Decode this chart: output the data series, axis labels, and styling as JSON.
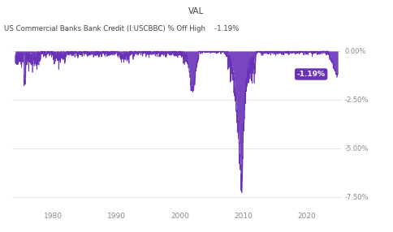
{
  "title_top": "VAL",
  "title_left": "US Commercial Banks Bank Credit (I:USCBBC) % Off High    -1.19%",
  "line_color": "#6932b8",
  "fill_color": "#6932b8",
  "background_color": "#ffffff",
  "grid_color": "#e0e0e0",
  "ylabel_right": [
    "0.00%",
    "-2.50%",
    "-5.00%",
    "-7.50%"
  ],
  "ylim": [
    -8.1,
    0.45
  ],
  "xlim_start": 1973.5,
  "xlim_end": 2025.5,
  "xtick_labels": [
    "1980",
    "1990",
    "2000",
    "2010",
    "2020"
  ],
  "xtick_positions": [
    1980,
    1990,
    2000,
    2010,
    2020
  ],
  "annotation_value": "-1.19%",
  "annotation_color": "#6932b8",
  "annotation_text_color": "#ffffff",
  "current_value": -1.19,
  "current_year": 2024.8
}
